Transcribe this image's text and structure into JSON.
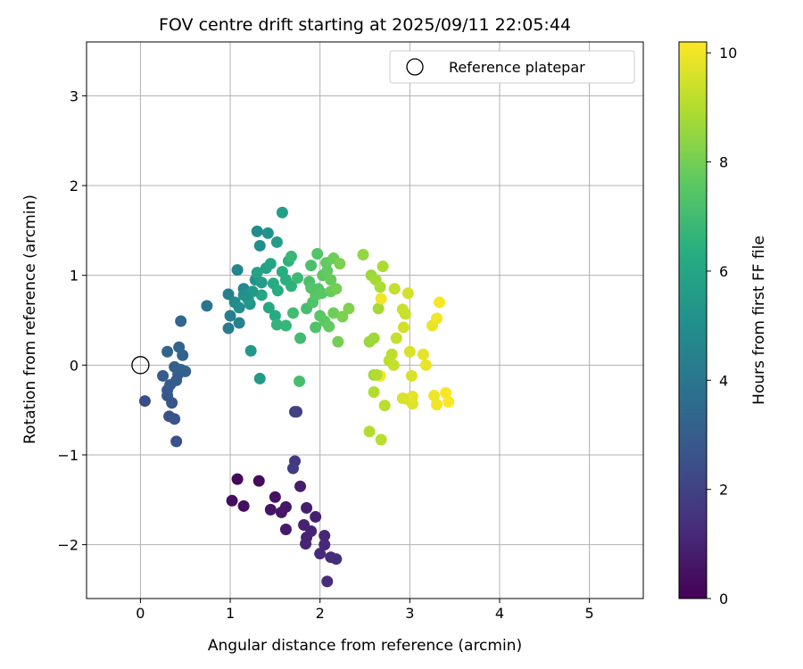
{
  "chart_data": {
    "type": "scatter",
    "title": "FOV centre drift starting at 2025/09/11 22:05:44",
    "xlabel": "Angular distance from reference (arcmin)",
    "ylabel": "Rotation from reference (arcmin)",
    "xlim": [
      -0.6,
      5.6
    ],
    "ylim": [
      -2.6,
      3.6
    ],
    "xticks": [
      0,
      1,
      2,
      3,
      4,
      5
    ],
    "yticks": [
      -2,
      -1,
      0,
      1,
      2,
      3
    ],
    "grid": true,
    "legend": {
      "placement": "upper right",
      "entries": [
        "Reference platepar"
      ]
    },
    "reference": {
      "x": 0,
      "y": 0
    },
    "colorbar": {
      "label": "Hours from first FF file",
      "colormap": "viridis",
      "range": [
        0,
        10.2
      ],
      "ticks": [
        0,
        2,
        4,
        6,
        8,
        10
      ]
    },
    "points": [
      {
        "x": 1.08,
        "y": -1.27,
        "c": 0.2
      },
      {
        "x": 1.32,
        "y": -1.29,
        "c": 0.3
      },
      {
        "x": 1.02,
        "y": -1.51,
        "c": 0.35
      },
      {
        "x": 1.15,
        "y": -1.57,
        "c": 0.4
      },
      {
        "x": 1.5,
        "y": -1.47,
        "c": 0.5
      },
      {
        "x": 1.45,
        "y": -1.61,
        "c": 0.55
      },
      {
        "x": 1.62,
        "y": -1.58,
        "c": 0.6
      },
      {
        "x": 1.57,
        "y": -1.64,
        "c": 0.65
      },
      {
        "x": 1.62,
        "y": -1.83,
        "c": 0.7
      },
      {
        "x": 1.78,
        "y": -1.35,
        "c": 0.8
      },
      {
        "x": 1.85,
        "y": -1.59,
        "c": 0.85
      },
      {
        "x": 1.95,
        "y": -1.69,
        "c": 0.9
      },
      {
        "x": 1.82,
        "y": -1.78,
        "c": 0.95
      },
      {
        "x": 1.9,
        "y": -1.85,
        "c": 1.0
      },
      {
        "x": 1.85,
        "y": -1.92,
        "c": 1.0
      },
      {
        "x": 1.84,
        "y": -1.99,
        "c": 1.05
      },
      {
        "x": 2.05,
        "y": -1.9,
        "c": 1.1
      },
      {
        "x": 2.05,
        "y": -2.0,
        "c": 1.15
      },
      {
        "x": 2.0,
        "y": -2.1,
        "c": 1.2
      },
      {
        "x": 2.12,
        "y": -2.14,
        "c": 1.25
      },
      {
        "x": 2.18,
        "y": -2.16,
        "c": 1.3
      },
      {
        "x": 2.08,
        "y": -2.41,
        "c": 1.3
      },
      {
        "x": 1.72,
        "y": -1.07,
        "c": 1.7
      },
      {
        "x": 1.7,
        "y": -1.15,
        "c": 1.8
      },
      {
        "x": 1.72,
        "y": -0.52,
        "c": 1.9
      },
      {
        "x": 1.74,
        "y": -0.52,
        "c": 2.0
      },
      {
        "x": 0.05,
        "y": -0.4,
        "c": 2.4
      },
      {
        "x": 0.4,
        "y": -0.85,
        "c": 2.5
      },
      {
        "x": 0.32,
        "y": -0.57,
        "c": 2.5
      },
      {
        "x": 0.38,
        "y": -0.6,
        "c": 2.6
      },
      {
        "x": 0.35,
        "y": -0.42,
        "c": 2.7
      },
      {
        "x": 0.3,
        "y": -0.34,
        "c": 2.7
      },
      {
        "x": 0.3,
        "y": -0.28,
        "c": 2.8
      },
      {
        "x": 0.33,
        "y": -0.22,
        "c": 2.9
      },
      {
        "x": 0.25,
        "y": -0.12,
        "c": 2.9
      },
      {
        "x": 0.4,
        "y": -0.17,
        "c": 3.0
      },
      {
        "x": 0.42,
        "y": -0.1,
        "c": 3.0
      },
      {
        "x": 0.38,
        "y": -0.02,
        "c": 3.1
      },
      {
        "x": 0.45,
        "y": -0.05,
        "c": 3.1
      },
      {
        "x": 0.5,
        "y": -0.07,
        "c": 3.2
      },
      {
        "x": 0.47,
        "y": 0.11,
        "c": 3.2
      },
      {
        "x": 0.43,
        "y": 0.2,
        "c": 3.3
      },
      {
        "x": 0.3,
        "y": 0.15,
        "c": 3.3
      },
      {
        "x": 0.45,
        "y": 0.49,
        "c": 3.4
      },
      {
        "x": 0.74,
        "y": 0.66,
        "c": 4.0
      },
      {
        "x": 0.98,
        "y": 0.41,
        "c": 4.2
      },
      {
        "x": 1.0,
        "y": 0.55,
        "c": 4.3
      },
      {
        "x": 0.98,
        "y": 0.79,
        "c": 4.4
      },
      {
        "x": 1.1,
        "y": 0.47,
        "c": 4.5
      },
      {
        "x": 1.08,
        "y": 1.06,
        "c": 4.6
      },
      {
        "x": 1.15,
        "y": 0.85,
        "c": 4.7
      },
      {
        "x": 1.05,
        "y": 0.7,
        "c": 4.8
      },
      {
        "x": 1.3,
        "y": 1.49,
        "c": 4.9
      },
      {
        "x": 1.33,
        "y": 1.33,
        "c": 5.0
      },
      {
        "x": 1.42,
        "y": 1.47,
        "c": 5.1
      },
      {
        "x": 1.28,
        "y": 0.95,
        "c": 5.2
      },
      {
        "x": 1.22,
        "y": 0.68,
        "c": 5.3
      },
      {
        "x": 1.23,
        "y": 0.16,
        "c": 5.4
      },
      {
        "x": 1.33,
        "y": -0.15,
        "c": 5.5
      },
      {
        "x": 1.52,
        "y": 1.37,
        "c": 5.6
      },
      {
        "x": 1.58,
        "y": 1.7,
        "c": 5.7
      },
      {
        "x": 1.4,
        "y": 1.08,
        "c": 5.8
      },
      {
        "x": 1.3,
        "y": 1.03,
        "c": 5.9
      },
      {
        "x": 1.45,
        "y": 1.13,
        "c": 6.0
      },
      {
        "x": 1.35,
        "y": 0.78,
        "c": 6.0
      },
      {
        "x": 1.43,
        "y": 0.64,
        "c": 6.1
      },
      {
        "x": 1.5,
        "y": 0.55,
        "c": 6.2
      },
      {
        "x": 1.48,
        "y": 0.91,
        "c": 6.2
      },
      {
        "x": 1.53,
        "y": 0.83,
        "c": 6.3
      },
      {
        "x": 1.58,
        "y": 1.04,
        "c": 6.3
      },
      {
        "x": 1.62,
        "y": 0.95,
        "c": 6.4
      },
      {
        "x": 1.68,
        "y": 0.88,
        "c": 6.5
      },
      {
        "x": 1.65,
        "y": 1.16,
        "c": 6.5
      },
      {
        "x": 1.2,
        "y": 0.73,
        "c": 5.4
      },
      {
        "x": 1.25,
        "y": 0.82,
        "c": 5.5
      },
      {
        "x": 1.35,
        "y": 0.92,
        "c": 5.6
      },
      {
        "x": 1.1,
        "y": 0.64,
        "c": 5.0
      },
      {
        "x": 1.15,
        "y": 0.78,
        "c": 5.1
      },
      {
        "x": 1.52,
        "y": 0.45,
        "c": 6.6
      },
      {
        "x": 1.62,
        "y": 0.44,
        "c": 6.7
      },
      {
        "x": 1.68,
        "y": 1.21,
        "c": 6.8
      },
      {
        "x": 1.75,
        "y": 0.97,
        "c": 6.9
      },
      {
        "x": 1.7,
        "y": 0.58,
        "c": 7.0
      },
      {
        "x": 1.78,
        "y": 0.3,
        "c": 7.0
      },
      {
        "x": 1.77,
        "y": -0.18,
        "c": 7.1
      },
      {
        "x": 1.85,
        "y": 0.63,
        "c": 7.1
      },
      {
        "x": 1.88,
        "y": 0.93,
        "c": 7.2
      },
      {
        "x": 1.9,
        "y": 1.11,
        "c": 7.2
      },
      {
        "x": 1.92,
        "y": 0.7,
        "c": 7.3
      },
      {
        "x": 1.95,
        "y": 0.42,
        "c": 7.3
      },
      {
        "x": 1.97,
        "y": 1.24,
        "c": 7.4
      },
      {
        "x": 1.98,
        "y": 0.85,
        "c": 7.4
      },
      {
        "x": 2.0,
        "y": 0.55,
        "c": 7.5
      },
      {
        "x": 2.02,
        "y": 0.8,
        "c": 7.5
      },
      {
        "x": 2.03,
        "y": 1.0,
        "c": 7.6
      },
      {
        "x": 2.05,
        "y": 0.49,
        "c": 7.6
      },
      {
        "x": 2.07,
        "y": 1.14,
        "c": 7.7
      },
      {
        "x": 2.1,
        "y": 0.43,
        "c": 7.7
      },
      {
        "x": 2.12,
        "y": 0.95,
        "c": 7.8
      },
      {
        "x": 2.12,
        "y": 0.82,
        "c": 7.8
      },
      {
        "x": 2.15,
        "y": 1.19,
        "c": 7.9
      },
      {
        "x": 2.15,
        "y": 0.58,
        "c": 7.9
      },
      {
        "x": 2.18,
        "y": 0.85,
        "c": 8.0
      },
      {
        "x": 2.2,
        "y": 0.26,
        "c": 8.0
      },
      {
        "x": 2.22,
        "y": 1.13,
        "c": 8.1
      },
      {
        "x": 2.25,
        "y": 0.54,
        "c": 8.1
      },
      {
        "x": 2.32,
        "y": 0.63,
        "c": 8.2
      },
      {
        "x": 1.95,
        "y": 0.78,
        "c": 7.5
      },
      {
        "x": 1.9,
        "y": 0.86,
        "c": 7.4
      },
      {
        "x": 2.08,
        "y": 1.05,
        "c": 7.7
      },
      {
        "x": 2.48,
        "y": 1.23,
        "c": 8.5
      },
      {
        "x": 2.55,
        "y": 0.26,
        "c": 8.6
      },
      {
        "x": 2.57,
        "y": 1.0,
        "c": 8.6
      },
      {
        "x": 2.6,
        "y": 0.3,
        "c": 8.7
      },
      {
        "x": 2.6,
        "y": -0.11,
        "c": 8.7
      },
      {
        "x": 2.62,
        "y": 0.95,
        "c": 8.8
      },
      {
        "x": 2.65,
        "y": 0.63,
        "c": 8.8
      },
      {
        "x": 2.67,
        "y": 0.87,
        "c": 8.9
      },
      {
        "x": 2.7,
        "y": 1.1,
        "c": 8.9
      },
      {
        "x": 2.55,
        "y": -0.74,
        "c": 9.0
      },
      {
        "x": 2.6,
        "y": -0.3,
        "c": 9.0
      },
      {
        "x": 2.68,
        "y": -0.83,
        "c": 9.1
      },
      {
        "x": 2.72,
        "y": -0.45,
        "c": 9.1
      },
      {
        "x": 2.77,
        "y": 0.05,
        "c": 9.2
      },
      {
        "x": 2.8,
        "y": 0.12,
        "c": 9.2
      },
      {
        "x": 2.82,
        "y": 0.0,
        "c": 9.3
      },
      {
        "x": 2.85,
        "y": 0.3,
        "c": 9.3
      },
      {
        "x": 2.83,
        "y": 0.85,
        "c": 9.3
      },
      {
        "x": 2.92,
        "y": 0.62,
        "c": 9.4
      },
      {
        "x": 2.95,
        "y": 0.57,
        "c": 9.4
      },
      {
        "x": 2.93,
        "y": 0.42,
        "c": 9.5
      },
      {
        "x": 2.98,
        "y": 0.8,
        "c": 9.5
      },
      {
        "x": 3.0,
        "y": 0.15,
        "c": 9.6
      },
      {
        "x": 3.02,
        "y": -0.12,
        "c": 9.6
      },
      {
        "x": 2.97,
        "y": -0.38,
        "c": 9.7
      },
      {
        "x": 3.03,
        "y": -0.43,
        "c": 9.7
      },
      {
        "x": 3.03,
        "y": -0.35,
        "c": 9.8
      },
      {
        "x": 3.15,
        "y": 0.12,
        "c": 9.8
      },
      {
        "x": 3.18,
        "y": 0.0,
        "c": 9.9
      },
      {
        "x": 3.25,
        "y": 0.44,
        "c": 9.9
      },
      {
        "x": 3.27,
        "y": -0.34,
        "c": 10.0
      },
      {
        "x": 3.3,
        "y": -0.44,
        "c": 10.0
      },
      {
        "x": 3.3,
        "y": 0.52,
        "c": 10.0
      },
      {
        "x": 3.33,
        "y": 0.7,
        "c": 10.1
      },
      {
        "x": 3.4,
        "y": -0.31,
        "c": 10.1
      },
      {
        "x": 3.43,
        "y": -0.41,
        "c": 10.2
      },
      {
        "x": 2.67,
        "y": -0.12,
        "c": 10.1
      },
      {
        "x": 2.63,
        "y": -0.11,
        "c": 9.0
      },
      {
        "x": 2.68,
        "y": 0.74,
        "c": 10.0
      },
      {
        "x": 2.92,
        "y": -0.37,
        "c": 9.6
      }
    ]
  }
}
